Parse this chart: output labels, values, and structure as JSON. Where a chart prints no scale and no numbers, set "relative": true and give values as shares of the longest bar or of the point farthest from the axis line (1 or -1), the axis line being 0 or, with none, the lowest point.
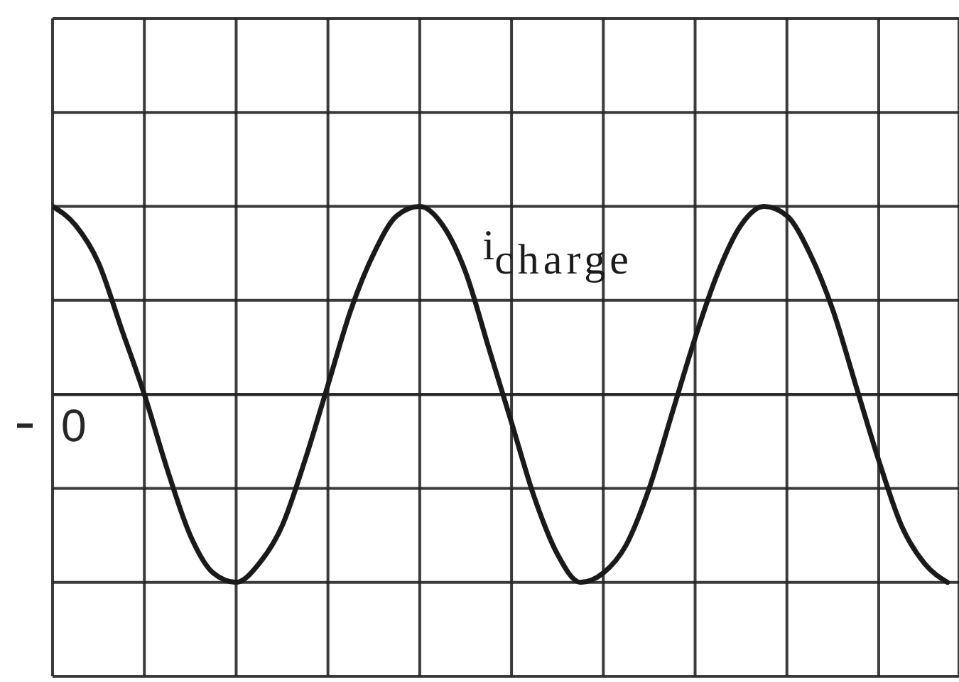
{
  "chart_data": {
    "type": "line",
    "categories": [
      null,
      null,
      null,
      null,
      null,
      null,
      null,
      null,
      null,
      null,
      null,
      null,
      null,
      null,
      null,
      null,
      null,
      null,
      null,
      null,
      null,
      null,
      null,
      null,
      null,
      null,
      null,
      null,
      null,
      null,
      null,
      null,
      null,
      null,
      null,
      null,
      null,
      null,
      null,
      null
    ],
    "series": [
      {
        "name": "i$_{charge}$",
        "color": "#1a1a1a",
        "values": [
          1,
          0.9,
          0.7,
          0.35,
          0,
          -0.4,
          -0.75,
          -0.95,
          -1,
          -0.9,
          -0.7,
          -0.35,
          0.05,
          0.45,
          0.75,
          0.95,
          1,
          0.9,
          0.65,
          0.25,
          -0.15,
          -0.55,
          -0.85,
          -1,
          -0.95,
          -0.8,
          -0.5,
          -0.1,
          0.3,
          0.65,
          0.9,
          1,
          0.95,
          0.75,
          0.45,
          0.05,
          -0.35,
          -0.7,
          -0.9,
          -1
        ]
      }
    ],
    "relative": true,
    "grid": true,
    "marker": "none",
    "ref_lines": [
      {
        "axis": "y",
        "value": 0,
        "label": "0"
      }
    ]
  }
}
